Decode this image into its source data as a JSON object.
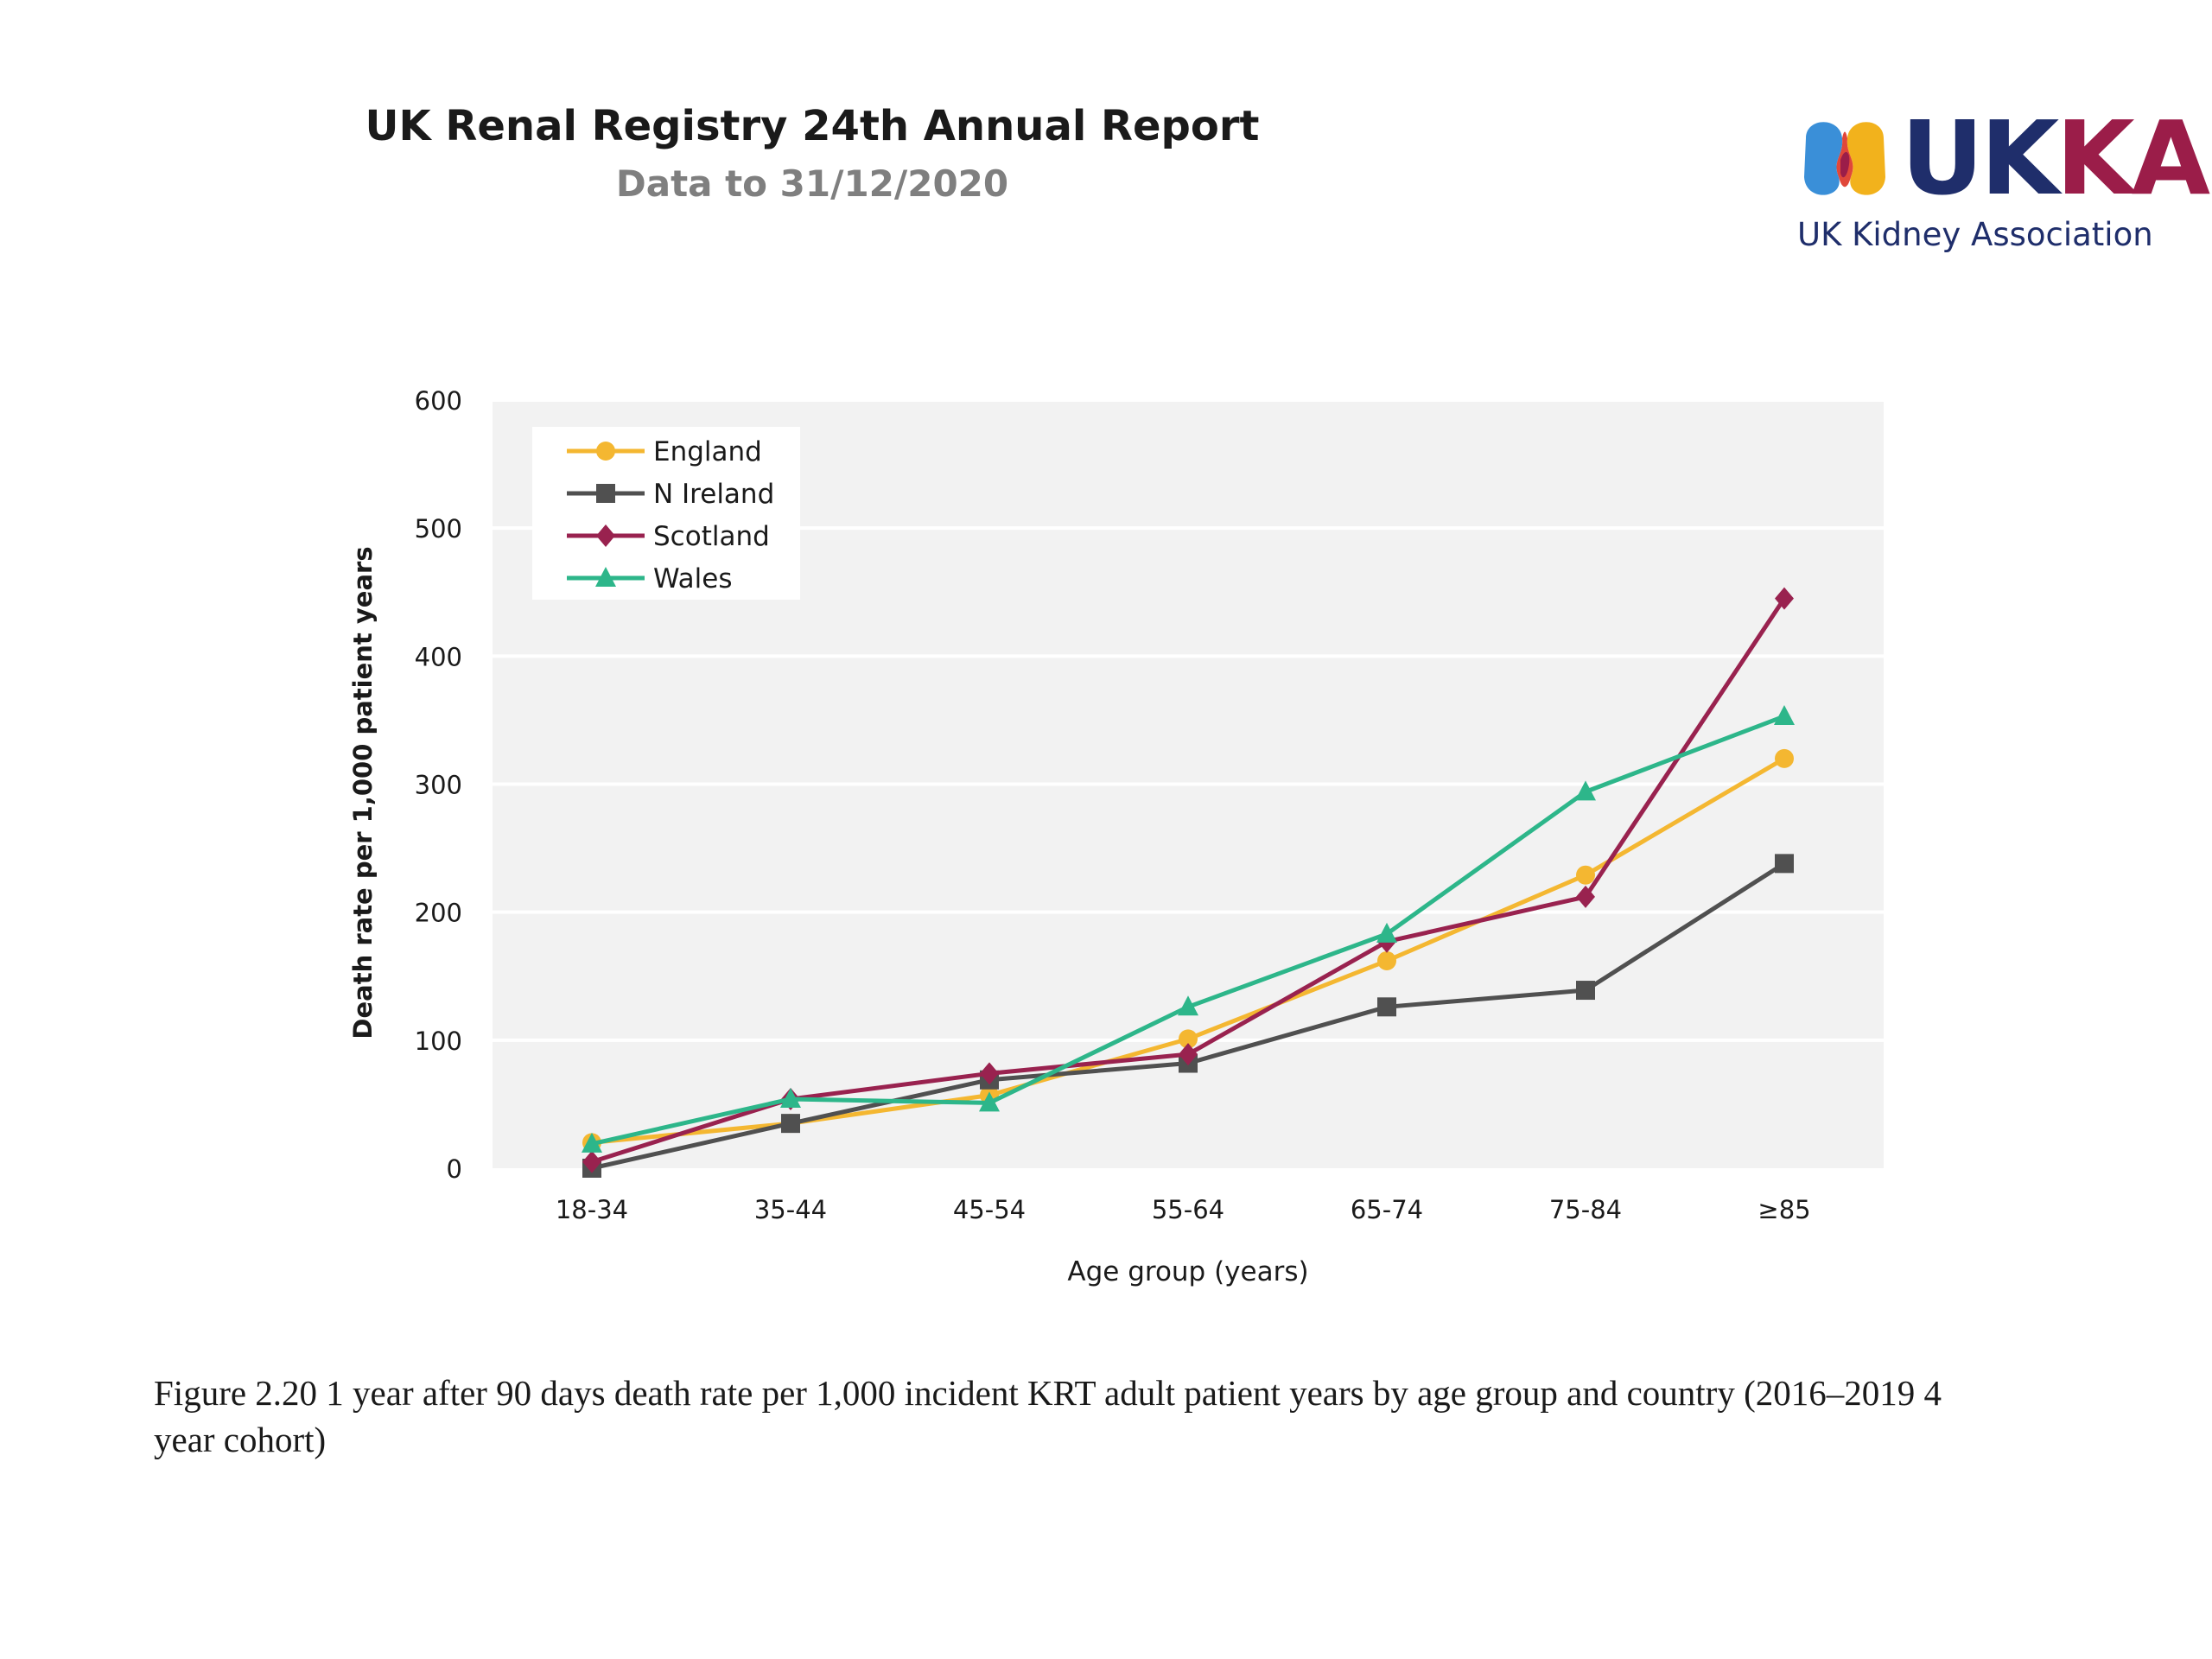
{
  "header": {
    "title": "UK Renal Registry 24th Annual Report",
    "subtitle": "Data to 31/12/2020"
  },
  "logo": {
    "wordmark_uk": "UK",
    "wordmark_ka": "KA",
    "tagline": "UK Kidney Association",
    "colors": {
      "navy": "#1f2e6b",
      "maroon": "#9b1d49",
      "blue": "#3a8fd8",
      "yellow": "#f2b21c",
      "red": "#e0473a"
    }
  },
  "chart_data": {
    "type": "line",
    "title": "",
    "xlabel": "Age group (years)",
    "ylabel": "Death rate per 1,000 patient years",
    "categories": [
      "18-34",
      "35-44",
      "45-54",
      "55-64",
      "65-74",
      "75-84",
      "≥85"
    ],
    "ylim": [
      0,
      600
    ],
    "yticks": [
      0,
      100,
      200,
      300,
      400,
      500,
      600
    ],
    "grid": true,
    "legend_position": "top-left",
    "series": [
      {
        "name": "England",
        "color": "#f4b731",
        "marker": "circle",
        "values": [
          20,
          35,
          57,
          101,
          162,
          229,
          320
        ]
      },
      {
        "name": "N Ireland",
        "color": "#505050",
        "marker": "square",
        "values": [
          0,
          35,
          69,
          82,
          126,
          139,
          238
        ]
      },
      {
        "name": "Scotland",
        "color": "#99224f",
        "marker": "diamond",
        "values": [
          5,
          54,
          74,
          89,
          177,
          212,
          445
        ]
      },
      {
        "name": "Wales",
        "color": "#2db68a",
        "marker": "triangle",
        "values": [
          19,
          54,
          51,
          126,
          183,
          294,
          353
        ]
      }
    ]
  },
  "caption": "Figure 2.20 1 year after 90 days death rate per 1,000 incident KRT adult patient years by age group and country (2016–2019 4 year cohort)"
}
